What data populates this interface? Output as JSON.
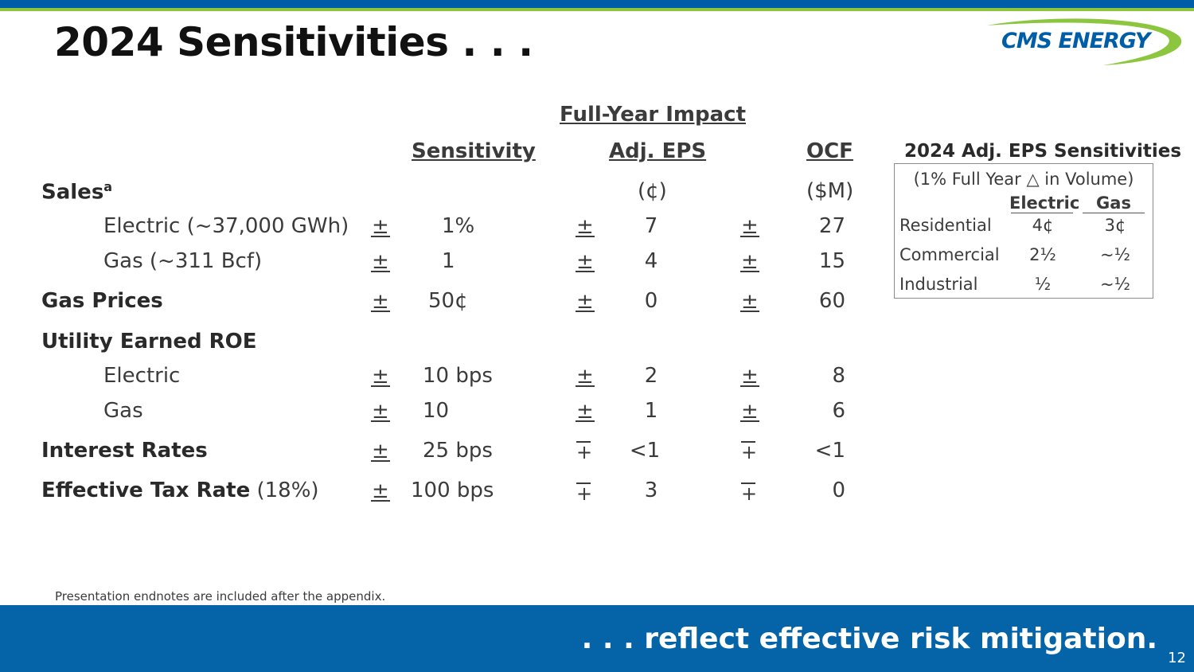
{
  "title": "2024 Sensitivities . . .",
  "logo": {
    "text": "CMS ENERGY",
    "colors": {
      "blue": "#005ea8",
      "green": "#8cc63e"
    }
  },
  "table": {
    "group_header": "Full-Year Impact",
    "columns": {
      "sensitivity": "Sensitivity",
      "eps": "Adj. EPS",
      "ocf": "OCF"
    },
    "units": {
      "eps": "(¢)",
      "ocf": "($M)"
    },
    "sales_label": "Sales",
    "sales_superscript": "a",
    "plus_minus": "±",
    "minus_plus": "∓",
    "rows": [
      {
        "label": "Electric (~37,000 GWh)",
        "sensitivity": "1%",
        "eps": "7",
        "ocf": "27"
      },
      {
        "label": "Gas (~311 Bcf)",
        "sensitivity": "1",
        "eps": "4",
        "ocf": "15"
      },
      {
        "label": "Gas Prices",
        "sensitivity": "50¢",
        "eps": "0",
        "ocf": "60"
      },
      {
        "label": "Utility Earned ROE"
      },
      {
        "label": "Electric",
        "sensitivity": "10 bps",
        "eps": "2",
        "ocf": "8"
      },
      {
        "label": "Gas",
        "sensitivity": "10",
        "eps": "1",
        "ocf": "6"
      },
      {
        "label": "Interest Rates",
        "sensitivity": "25 bps",
        "eps": "<1",
        "ocf": "<1"
      },
      {
        "label": "Effective Tax Rate",
        "label_suffix": " (18%)",
        "sensitivity": "100 bps",
        "eps": "3",
        "ocf": "0"
      }
    ]
  },
  "eps_box": {
    "title": "2024 Adj. EPS Sensitivities",
    "subtitle": "(1% Full Year △ in Volume)",
    "headers": {
      "electric": "Electric",
      "gas": "Gas"
    },
    "rows": [
      {
        "label": "Residential",
        "electric": "4¢",
        "gas": "3¢"
      },
      {
        "label": "Commercial",
        "electric": "2½",
        "gas": "~½"
      },
      {
        "label": "Industrial",
        "electric": "½",
        "gas": "~½"
      }
    ]
  },
  "footnote": "Presentation endnotes are included after the appendix.",
  "tagline": ". . . reflect effective risk mitigation.",
  "page_number": "12"
}
